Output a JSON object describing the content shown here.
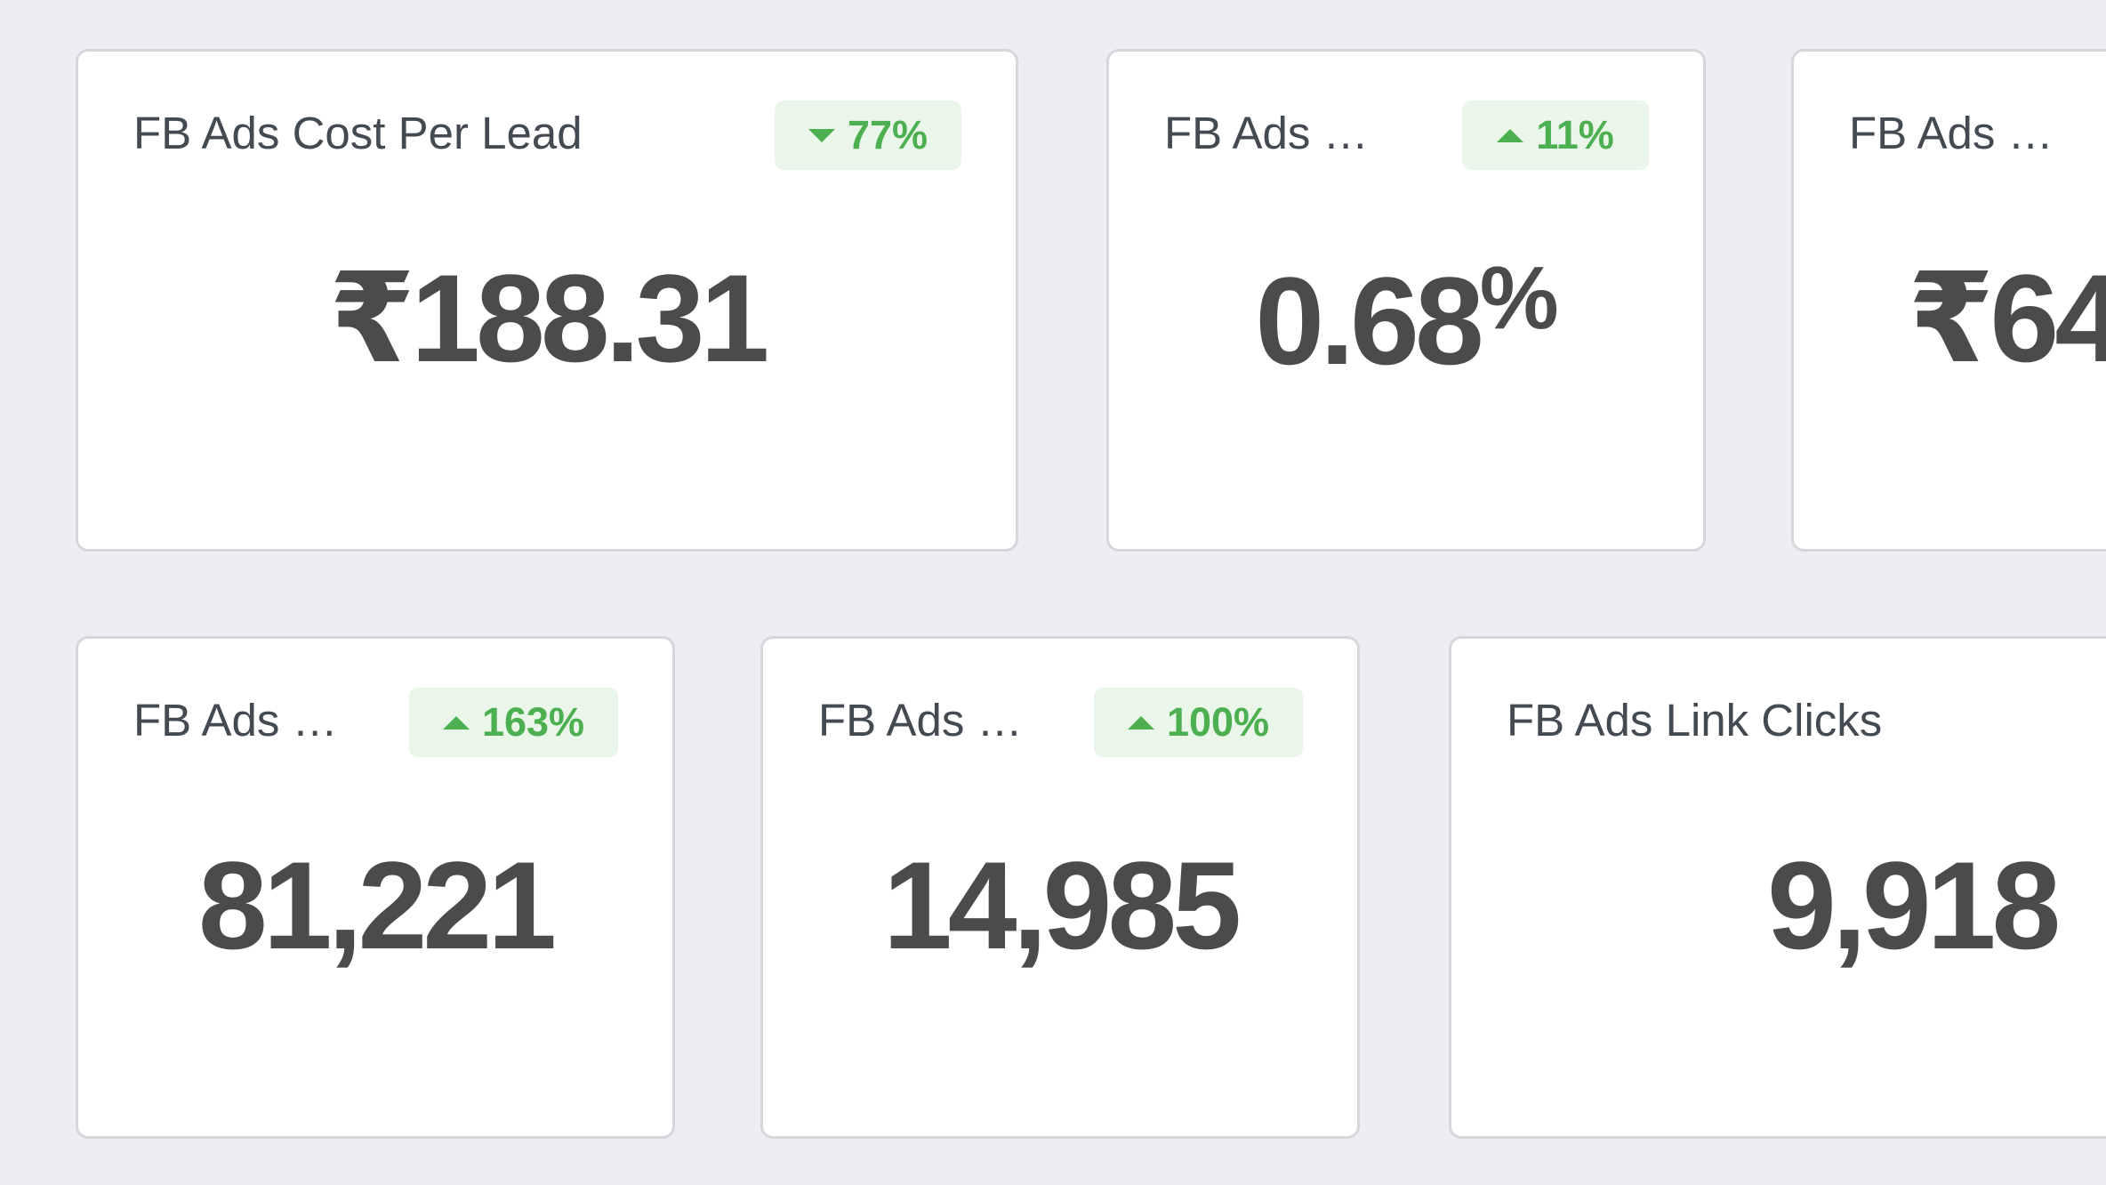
{
  "cards": [
    {
      "title": "FB Ads Cost Per Lead",
      "value": "₹188.31",
      "change": "77%",
      "direction": "down"
    },
    {
      "title": "FB Ads …",
      "value": "0.68",
      "unit": "%",
      "change": "11%",
      "direction": "up"
    },
    {
      "title": "FB Ads …",
      "value": "₹64",
      "change": "",
      "direction": ""
    },
    {
      "title": "FB Ads …",
      "value": "81,221",
      "change": "163%",
      "direction": "up"
    },
    {
      "title": "FB Ads …",
      "value": "14,985",
      "change": "100%",
      "direction": "up"
    },
    {
      "title": "FB Ads Link Clicks",
      "value": "9,918",
      "change": "",
      "direction": ""
    }
  ],
  "colors": {
    "background": "#eceef2",
    "card_background": "#ffffff",
    "card_border": "#d5d7dc",
    "badge_background": "#eaf6ea",
    "positive": "#4caf50",
    "value_text": "#4a4b4d",
    "title_text": "#444a52"
  },
  "icons": {
    "down": "caret-down-icon",
    "up": "caret-up-icon"
  }
}
